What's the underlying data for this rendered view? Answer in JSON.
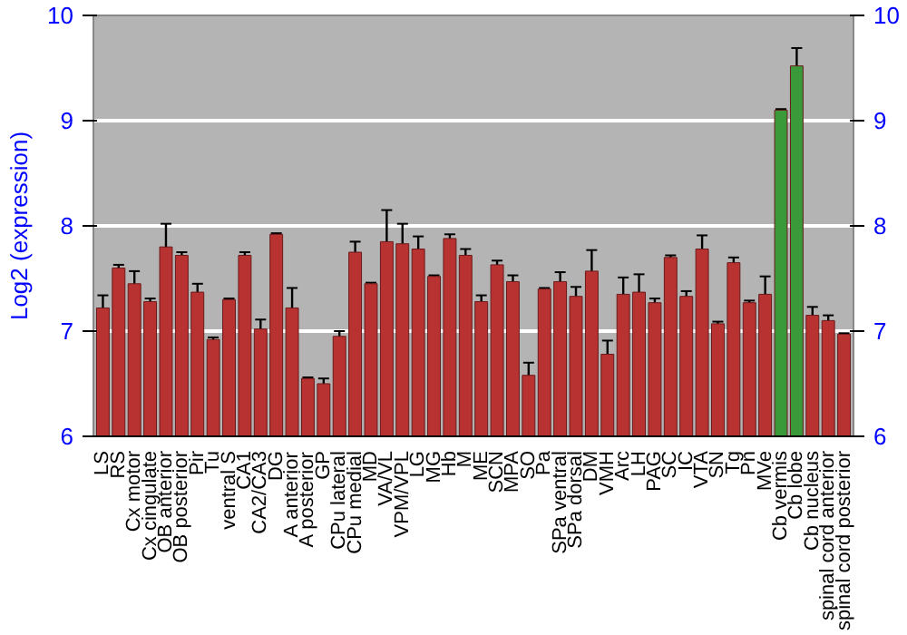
{
  "chart_data": {
    "type": "bar",
    "ylabel": "Log2 (expression)",
    "categories": [
      "LS",
      "RS",
      "Cx motor",
      "Cx cingulate",
      "OB anterior",
      "OB posterior",
      "Pir",
      "Tu",
      "ventral S",
      "CA1",
      "CA2/CA3",
      "DG",
      "A anterior",
      "A posterior",
      "GP",
      "CPu lateral",
      "CPu medial",
      "MD",
      "VA/VL",
      "VPM/VPL",
      "LG",
      "MG",
      "Hb",
      "M",
      "ME",
      "SCN",
      "MPA",
      "SO",
      "Pa",
      "SPa ventral",
      "SPa dorsal",
      "DM",
      "VMH",
      "Arc",
      "LH",
      "PAG",
      "SC",
      "IC",
      "VTA",
      "SN",
      "Tg",
      "Pn",
      "MVe",
      "Cb vermis",
      "Cb lobe",
      "Cb nucleus",
      "spinal cord anterior",
      "spinal cord posterior"
    ],
    "values": [
      7.22,
      7.6,
      7.45,
      7.28,
      7.8,
      7.72,
      7.37,
      6.92,
      7.3,
      7.72,
      7.02,
      7.92,
      7.22,
      6.55,
      6.5,
      6.95,
      7.75,
      7.45,
      7.85,
      7.83,
      7.78,
      7.52,
      7.88,
      7.72,
      7.28,
      7.63,
      7.47,
      6.58,
      7.4,
      7.47,
      7.33,
      7.57,
      6.78,
      7.35,
      7.37,
      7.27,
      7.7,
      7.33,
      7.78,
      7.07,
      7.65,
      7.27,
      7.35,
      9.1,
      9.52,
      7.15,
      7.1,
      6.97
    ],
    "errors": [
      0.12,
      0.03,
      0.12,
      0.03,
      0.22,
      0.03,
      0.08,
      0.02,
      0.01,
      0.03,
      0.09,
      0.01,
      0.19,
      0.01,
      0.05,
      0.05,
      0.1,
      0.01,
      0.3,
      0.19,
      0.12,
      0.01,
      0.04,
      0.06,
      0.06,
      0.04,
      0.06,
      0.12,
      0.01,
      0.09,
      0.09,
      0.2,
      0.13,
      0.16,
      0.17,
      0.04,
      0.02,
      0.05,
      0.13,
      0.02,
      0.05,
      0.02,
      0.17,
      0.01,
      0.17,
      0.08,
      0.05,
      0.01
    ],
    "colors": [
      "#b83232",
      "#b83232",
      "#b83232",
      "#b83232",
      "#b83232",
      "#b83232",
      "#b83232",
      "#b83232",
      "#b83232",
      "#b83232",
      "#b83232",
      "#b83232",
      "#b83232",
      "#b83232",
      "#b83232",
      "#b83232",
      "#b83232",
      "#b83232",
      "#b83232",
      "#b83232",
      "#b83232",
      "#b83232",
      "#b83232",
      "#b83232",
      "#b83232",
      "#b83232",
      "#b83232",
      "#b83232",
      "#b83232",
      "#b83232",
      "#b83232",
      "#b83232",
      "#b83232",
      "#b83232",
      "#b83232",
      "#b83232",
      "#b83232",
      "#b83232",
      "#b83232",
      "#b83232",
      "#b83232",
      "#b83232",
      "#b83232",
      "#3a9a3a",
      "#3a9a3a",
      "#b83232",
      "#b83232",
      "#b83232"
    ],
    "ylim": [
      6,
      10
    ],
    "yticks": [
      6,
      7,
      8,
      9,
      10
    ],
    "y2lim": [
      6,
      10
    ],
    "y2ticks": [
      6,
      7,
      8,
      9,
      10
    ],
    "grid": "y"
  }
}
